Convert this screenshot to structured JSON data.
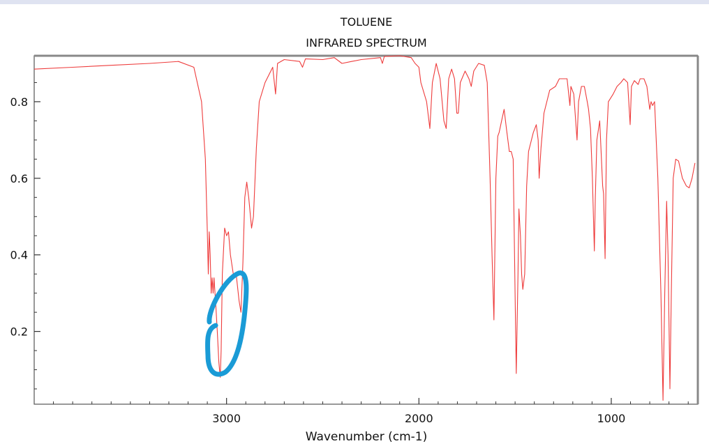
{
  "chart_data": {
    "type": "line",
    "title": "TOLUENE",
    "subtitle": "INFRARED SPECTRUM",
    "xlabel": "Wavenumber (cm-1)",
    "ylabel": "",
    "xlim": [
      4000,
      550
    ],
    "ylim": [
      0.01,
      0.92
    ],
    "x_ticks": [
      3000,
      2000,
      1000
    ],
    "y_ticks": [
      0.2,
      0.4,
      0.6,
      0.8
    ],
    "grid": false,
    "colors": {
      "series": "#ee3b3b",
      "annotation": "#1a9bd6"
    },
    "series": [
      {
        "points": [
          [
            4000,
            0.885
          ],
          [
            3800,
            0.89
          ],
          [
            3600,
            0.895
          ],
          [
            3400,
            0.9
          ],
          [
            3250,
            0.905
          ],
          [
            3170,
            0.89
          ],
          [
            3130,
            0.8
          ],
          [
            3110,
            0.65
          ],
          [
            3100,
            0.46
          ],
          [
            3095,
            0.35
          ],
          [
            3090,
            0.46
          ],
          [
            3085,
            0.4
          ],
          [
            3080,
            0.3
          ],
          [
            3075,
            0.34
          ],
          [
            3070,
            0.3
          ],
          [
            3065,
            0.34
          ],
          [
            3060,
            0.3
          ],
          [
            3055,
            0.26
          ],
          [
            3048,
            0.2
          ],
          [
            3040,
            0.12
          ],
          [
            3033,
            0.08
          ],
          [
            3028,
            0.15
          ],
          [
            3022,
            0.35
          ],
          [
            3010,
            0.47
          ],
          [
            3000,
            0.45
          ],
          [
            2990,
            0.46
          ],
          [
            2980,
            0.4
          ],
          [
            2965,
            0.35
          ],
          [
            2950,
            0.35
          ],
          [
            2935,
            0.28
          ],
          [
            2925,
            0.25
          ],
          [
            2915,
            0.38
          ],
          [
            2905,
            0.55
          ],
          [
            2895,
            0.59
          ],
          [
            2885,
            0.55
          ],
          [
            2870,
            0.47
          ],
          [
            2860,
            0.5
          ],
          [
            2845,
            0.68
          ],
          [
            2830,
            0.8
          ],
          [
            2800,
            0.85
          ],
          [
            2760,
            0.89
          ],
          [
            2745,
            0.82
          ],
          [
            2735,
            0.9
          ],
          [
            2700,
            0.91
          ],
          [
            2620,
            0.905
          ],
          [
            2605,
            0.89
          ],
          [
            2590,
            0.912
          ],
          [
            2500,
            0.91
          ],
          [
            2440,
            0.915
          ],
          [
            2400,
            0.9
          ],
          [
            2350,
            0.905
          ],
          [
            2300,
            0.91
          ],
          [
            2200,
            0.915
          ],
          [
            2190,
            0.9
          ],
          [
            2180,
            0.918
          ],
          [
            2100,
            0.92
          ],
          [
            2040,
            0.915
          ],
          [
            2020,
            0.9
          ],
          [
            2000,
            0.89
          ],
          [
            1990,
            0.85
          ],
          [
            1960,
            0.8
          ],
          [
            1943,
            0.73
          ],
          [
            1930,
            0.85
          ],
          [
            1910,
            0.9
          ],
          [
            1890,
            0.86
          ],
          [
            1870,
            0.75
          ],
          [
            1858,
            0.73
          ],
          [
            1845,
            0.86
          ],
          [
            1830,
            0.885
          ],
          [
            1815,
            0.86
          ],
          [
            1803,
            0.77
          ],
          [
            1795,
            0.77
          ],
          [
            1785,
            0.85
          ],
          [
            1760,
            0.88
          ],
          [
            1740,
            0.86
          ],
          [
            1728,
            0.84
          ],
          [
            1715,
            0.88
          ],
          [
            1690,
            0.9
          ],
          [
            1660,
            0.895
          ],
          [
            1645,
            0.85
          ],
          [
            1630,
            0.6
          ],
          [
            1620,
            0.4
          ],
          [
            1610,
            0.23
          ],
          [
            1600,
            0.6
          ],
          [
            1590,
            0.71
          ],
          [
            1583,
            0.72
          ],
          [
            1570,
            0.75
          ],
          [
            1557,
            0.78
          ],
          [
            1545,
            0.73
          ],
          [
            1530,
            0.67
          ],
          [
            1520,
            0.67
          ],
          [
            1510,
            0.65
          ],
          [
            1500,
            0.3
          ],
          [
            1494,
            0.09
          ],
          [
            1485,
            0.35
          ],
          [
            1480,
            0.52
          ],
          [
            1472,
            0.45
          ],
          [
            1466,
            0.35
          ],
          [
            1460,
            0.31
          ],
          [
            1450,
            0.35
          ],
          [
            1440,
            0.58
          ],
          [
            1430,
            0.67
          ],
          [
            1405,
            0.72
          ],
          [
            1390,
            0.74
          ],
          [
            1380,
            0.7
          ],
          [
            1375,
            0.6
          ],
          [
            1365,
            0.68
          ],
          [
            1350,
            0.77
          ],
          [
            1320,
            0.83
          ],
          [
            1290,
            0.84
          ],
          [
            1270,
            0.86
          ],
          [
            1230,
            0.86
          ],
          [
            1215,
            0.79
          ],
          [
            1210,
            0.84
          ],
          [
            1195,
            0.82
          ],
          [
            1178,
            0.7
          ],
          [
            1170,
            0.8
          ],
          [
            1155,
            0.84
          ],
          [
            1140,
            0.84
          ],
          [
            1125,
            0.8
          ],
          [
            1118,
            0.78
          ],
          [
            1108,
            0.73
          ],
          [
            1098,
            0.6
          ],
          [
            1088,
            0.41
          ],
          [
            1083,
            0.55
          ],
          [
            1075,
            0.7
          ],
          [
            1060,
            0.75
          ],
          [
            1045,
            0.58
          ],
          [
            1040,
            0.56
          ],
          [
            1032,
            0.39
          ],
          [
            1025,
            0.7
          ],
          [
            1015,
            0.8
          ],
          [
            990,
            0.82
          ],
          [
            970,
            0.84
          ],
          [
            950,
            0.85
          ],
          [
            935,
            0.86
          ],
          [
            915,
            0.85
          ],
          [
            902,
            0.74
          ],
          [
            895,
            0.84
          ],
          [
            880,
            0.855
          ],
          [
            860,
            0.845
          ],
          [
            850,
            0.86
          ],
          [
            830,
            0.86
          ],
          [
            815,
            0.84
          ],
          [
            800,
            0.78
          ],
          [
            793,
            0.8
          ],
          [
            785,
            0.79
          ],
          [
            775,
            0.8
          ],
          [
            758,
            0.6
          ],
          [
            742,
            0.3
          ],
          [
            731,
            0.02
          ],
          [
            722,
            0.3
          ],
          [
            712,
            0.54
          ],
          [
            705,
            0.4
          ],
          [
            695,
            0.05
          ],
          [
            688,
            0.3
          ],
          [
            678,
            0.6
          ],
          [
            665,
            0.65
          ],
          [
            650,
            0.645
          ],
          [
            630,
            0.6
          ],
          [
            610,
            0.58
          ],
          [
            595,
            0.575
          ],
          [
            580,
            0.6
          ],
          [
            565,
            0.64
          ]
        ]
      }
    ]
  }
}
